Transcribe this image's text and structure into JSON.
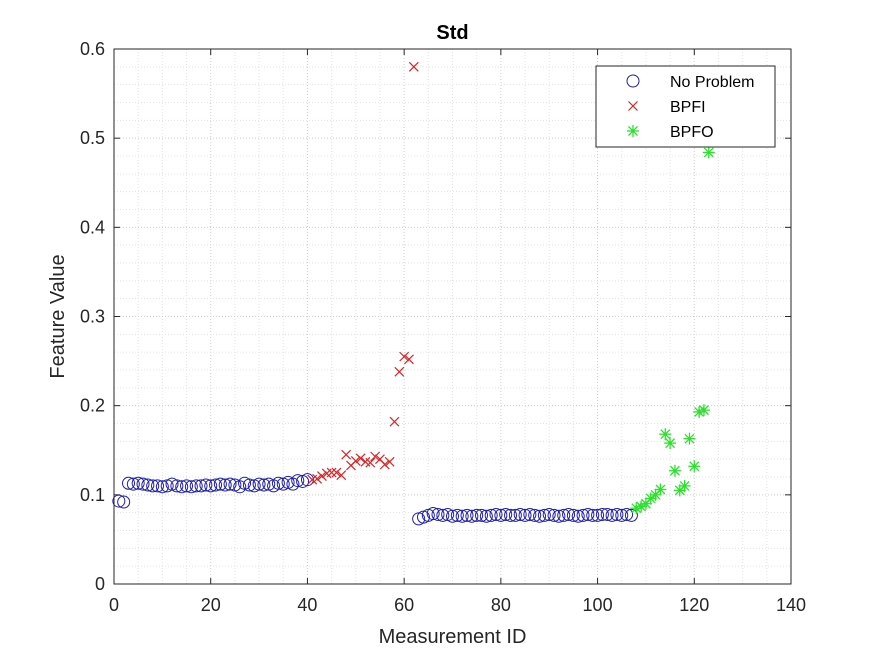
{
  "chart_data": {
    "type": "scatter",
    "title": "Std",
    "xlabel": "Measurement ID",
    "ylabel": "Feature Value",
    "xlim": [
      0,
      140
    ],
    "ylim": [
      0,
      0.6
    ],
    "xticks": [
      0,
      20,
      40,
      60,
      80,
      100,
      120,
      140
    ],
    "yticks": [
      0,
      0.1,
      0.2,
      0.3,
      0.4,
      0.5,
      0.6
    ],
    "grid": "major and minor dotted",
    "legend_position": "top-right",
    "series": [
      {
        "name": "No Problem",
        "marker": "circle",
        "color": "#1f1faa",
        "points": [
          [
            1,
            0.093
          ],
          [
            2,
            0.092
          ],
          [
            3,
            0.113
          ],
          [
            4,
            0.112
          ],
          [
            5,
            0.113
          ],
          [
            6,
            0.112
          ],
          [
            7,
            0.111
          ],
          [
            8,
            0.11
          ],
          [
            9,
            0.11
          ],
          [
            10,
            0.109
          ],
          [
            11,
            0.11
          ],
          [
            12,
            0.112
          ],
          [
            13,
            0.11
          ],
          [
            14,
            0.109
          ],
          [
            15,
            0.11
          ],
          [
            16,
            0.109
          ],
          [
            17,
            0.11
          ],
          [
            18,
            0.11
          ],
          [
            19,
            0.111
          ],
          [
            20,
            0.11
          ],
          [
            21,
            0.111
          ],
          [
            22,
            0.112
          ],
          [
            23,
            0.111
          ],
          [
            24,
            0.112
          ],
          [
            25,
            0.111
          ],
          [
            26,
            0.109
          ],
          [
            27,
            0.113
          ],
          [
            28,
            0.111
          ],
          [
            29,
            0.11
          ],
          [
            30,
            0.112
          ],
          [
            31,
            0.111
          ],
          [
            32,
            0.112
          ],
          [
            33,
            0.11
          ],
          [
            34,
            0.113
          ],
          [
            35,
            0.112
          ],
          [
            36,
            0.114
          ],
          [
            37,
            0.112
          ],
          [
            38,
            0.116
          ],
          [
            39,
            0.115
          ],
          [
            40,
            0.117
          ],
          [
            63,
            0.073
          ],
          [
            64,
            0.075
          ],
          [
            65,
            0.077
          ],
          [
            66,
            0.079
          ],
          [
            67,
            0.078
          ],
          [
            68,
            0.077
          ],
          [
            69,
            0.078
          ],
          [
            70,
            0.076
          ],
          [
            71,
            0.077
          ],
          [
            72,
            0.076
          ],
          [
            73,
            0.077
          ],
          [
            74,
            0.076
          ],
          [
            75,
            0.077
          ],
          [
            76,
            0.077
          ],
          [
            77,
            0.076
          ],
          [
            78,
            0.077
          ],
          [
            79,
            0.078
          ],
          [
            80,
            0.077
          ],
          [
            81,
            0.078
          ],
          [
            82,
            0.077
          ],
          [
            83,
            0.077
          ],
          [
            84,
            0.078
          ],
          [
            85,
            0.077
          ],
          [
            86,
            0.078
          ],
          [
            87,
            0.077
          ],
          [
            88,
            0.076
          ],
          [
            89,
            0.077
          ],
          [
            90,
            0.078
          ],
          [
            91,
            0.077
          ],
          [
            92,
            0.076
          ],
          [
            93,
            0.077
          ],
          [
            94,
            0.078
          ],
          [
            95,
            0.077
          ],
          [
            96,
            0.076
          ],
          [
            97,
            0.077
          ],
          [
            98,
            0.078
          ],
          [
            99,
            0.077
          ],
          [
            100,
            0.077
          ],
          [
            101,
            0.078
          ],
          [
            102,
            0.078
          ],
          [
            103,
            0.077
          ],
          [
            104,
            0.078
          ],
          [
            105,
            0.077
          ],
          [
            106,
            0.078
          ],
          [
            107,
            0.077
          ]
        ]
      },
      {
        "name": "BPFI",
        "marker": "x",
        "color": "#d62728",
        "points": [
          [
            41,
            0.117
          ],
          [
            42,
            0.118
          ],
          [
            43,
            0.121
          ],
          [
            44,
            0.124
          ],
          [
            45,
            0.125
          ],
          [
            46,
            0.125
          ],
          [
            47,
            0.122
          ],
          [
            48,
            0.145
          ],
          [
            49,
            0.133
          ],
          [
            50,
            0.138
          ],
          [
            51,
            0.141
          ],
          [
            52,
            0.137
          ],
          [
            53,
            0.136
          ],
          [
            54,
            0.143
          ],
          [
            55,
            0.14
          ],
          [
            56,
            0.134
          ],
          [
            57,
            0.137
          ],
          [
            58,
            0.182
          ],
          [
            59,
            0.238
          ],
          [
            60,
            0.255
          ],
          [
            61,
            0.252
          ],
          [
            62,
            0.58
          ]
        ]
      },
      {
        "name": "BPFO",
        "marker": "asterisk",
        "color": "#2ee02e",
        "points": [
          [
            108,
            0.085
          ],
          [
            109,
            0.087
          ],
          [
            110,
            0.09
          ],
          [
            111,
            0.096
          ],
          [
            112,
            0.1
          ],
          [
            113,
            0.106
          ],
          [
            114,
            0.168
          ],
          [
            115,
            0.158
          ],
          [
            116,
            0.127
          ],
          [
            117,
            0.105
          ],
          [
            118,
            0.11
          ],
          [
            119,
            0.163
          ],
          [
            120,
            0.132
          ],
          [
            121,
            0.193
          ],
          [
            122,
            0.195
          ],
          [
            123,
            0.484
          ]
        ]
      }
    ]
  }
}
